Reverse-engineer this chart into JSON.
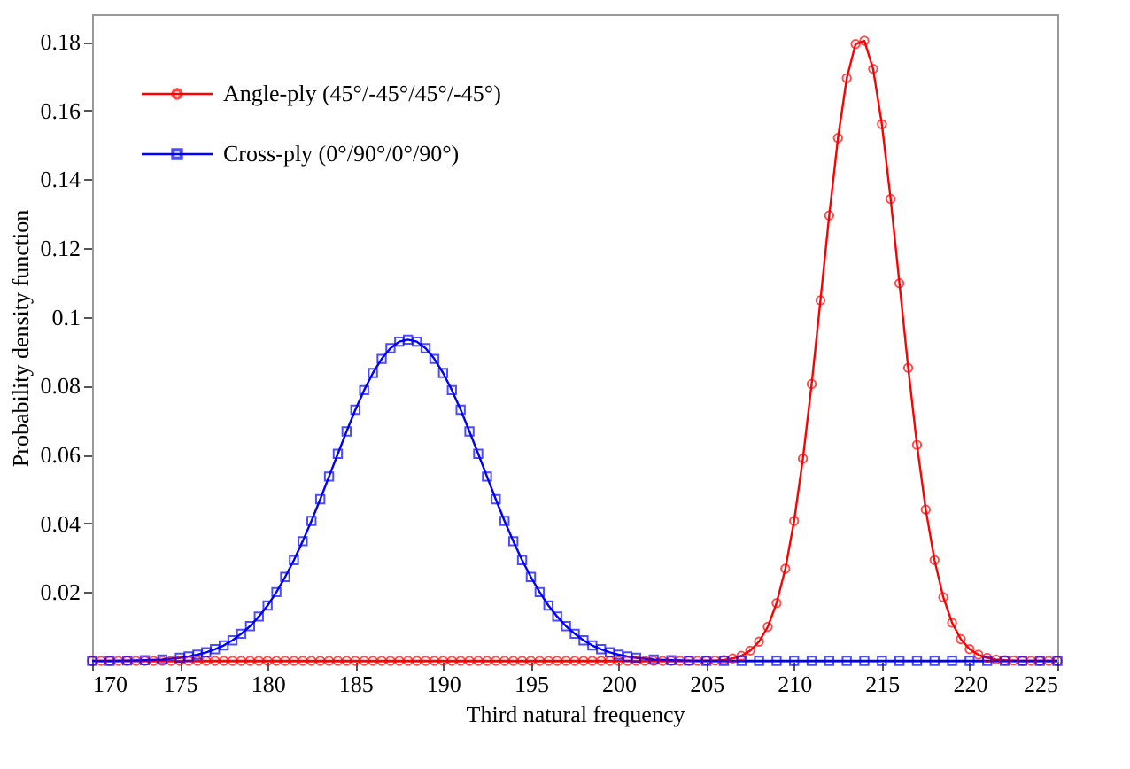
{
  "chart_data": {
    "type": "line",
    "xlabel": "Third natural frequency",
    "ylabel": "Probability density function",
    "xlim": [
      170,
      225
    ],
    "xticks": [
      170,
      175,
      180,
      185,
      190,
      195,
      200,
      205,
      210,
      215,
      220,
      225
    ],
    "ylim": [
      0,
      0.188
    ],
    "yticks": [
      0.02,
      0.04,
      0.06,
      0.08,
      0.1,
      0.12,
      0.14,
      0.16,
      0.18
    ],
    "grid": false,
    "legend": "top left",
    "line_style": "solid",
    "series": [
      {
        "name": "Angle-ply (45°/-45°/45°/-45°)",
        "color": "#ff0000",
        "marker": "circle",
        "x": [
          170,
          170.5,
          171,
          171.5,
          172,
          172.5,
          173,
          173.5,
          174,
          174.5,
          175,
          175.5,
          176,
          176.5,
          177,
          177.5,
          178,
          178.5,
          179,
          179.5,
          180,
          180.5,
          181,
          181.5,
          182,
          182.5,
          183,
          183.5,
          184,
          184.5,
          185,
          185.5,
          186,
          186.5,
          187,
          187.5,
          188,
          188.5,
          189,
          189.5,
          190,
          190.5,
          191,
          191.5,
          192,
          192.5,
          193,
          193.5,
          194,
          194.5,
          195,
          195.5,
          196,
          196.5,
          197,
          197.5,
          198,
          198.5,
          199,
          199.5,
          200,
          200.5,
          201,
          201.5,
          202,
          202.5,
          203,
          203.5,
          204,
          204.5,
          205,
          205.5,
          206,
          206.5,
          207,
          207.5,
          208,
          208.5,
          209,
          209.5,
          210,
          210.5,
          211,
          211.5,
          212,
          212.5,
          213,
          213.5,
          214,
          214.5,
          215,
          215.5,
          216,
          216.5,
          217,
          217.5,
          218,
          218.5,
          219,
          219.5,
          220,
          220.5,
          221,
          221.5,
          222,
          222.5,
          223,
          223.5,
          224,
          224.5,
          225
        ],
        "values": [
          0,
          0,
          0,
          0,
          0,
          0,
          0,
          0,
          0,
          0,
          0,
          0,
          0,
          0,
          0,
          0,
          0,
          0,
          0,
          0,
          0,
          0,
          0,
          0,
          0,
          0,
          0,
          0,
          0,
          0,
          0,
          0,
          0,
          0,
          0,
          0,
          0,
          0,
          0,
          0,
          0,
          0,
          0,
          0,
          0,
          0,
          0,
          0,
          0,
          0,
          0,
          0,
          0,
          0,
          0,
          0,
          0,
          0,
          0,
          0,
          0,
          0,
          0,
          0,
          0,
          0,
          0,
          0,
          0,
          0,
          0.0001,
          0.0001,
          0.0003,
          0.0007,
          0.0015,
          0.003,
          0.0056,
          0.0099,
          0.0168,
          0.0268,
          0.0407,
          0.0588,
          0.0805,
          0.1048,
          0.1295,
          0.152,
          0.1694,
          0.1793,
          0.1803,
          0.1721,
          0.156,
          0.1343,
          0.1098,
          0.0852,
          0.0628,
          0.044,
          0.0293,
          0.0185,
          0.0111,
          0.0063,
          0.0034,
          0.0018,
          0.0009,
          0.0004,
          0.0002,
          0.0001,
          0,
          0,
          0,
          0,
          0
        ]
      },
      {
        "name": "Cross-ply (0°/90°/0°/90°)",
        "color": "#0000ff",
        "marker": "square",
        "x": [
          170,
          171,
          172,
          173,
          174,
          175,
          175.5,
          176,
          176.5,
          177,
          177.5,
          178,
          178.5,
          179,
          179.5,
          180,
          180.5,
          181,
          181.5,
          182,
          182.5,
          183,
          183.5,
          184,
          184.5,
          185,
          185.5,
          186,
          186.5,
          187,
          187.5,
          188,
          188.5,
          189,
          189.5,
          190,
          190.5,
          191,
          191.5,
          192,
          192.5,
          193,
          193.5,
          194,
          194.5,
          195,
          195.5,
          196,
          196.5,
          197,
          197.5,
          198,
          198.5,
          199,
          199.5,
          200,
          200.5,
          201,
          202,
          203,
          204,
          205,
          206,
          207,
          208,
          209,
          210,
          211,
          212,
          213,
          214,
          215,
          216,
          217,
          218,
          219,
          220,
          221,
          222,
          223,
          224,
          225
        ],
        "values": [
          0,
          0,
          0.0001,
          0.0002,
          0.0004,
          0.0009,
          0.0013,
          0.0018,
          0.0025,
          0.0034,
          0.0045,
          0.006,
          0.0079,
          0.0101,
          0.0129,
          0.0161,
          0.02,
          0.0244,
          0.0293,
          0.0348,
          0.0407,
          0.047,
          0.0536,
          0.0602,
          0.0667,
          0.073,
          0.0787,
          0.0837,
          0.0878,
          0.0909,
          0.0928,
          0.0934,
          0.0928,
          0.0909,
          0.0878,
          0.0837,
          0.0787,
          0.073,
          0.0667,
          0.0602,
          0.0536,
          0.047,
          0.0407,
          0.0348,
          0.0293,
          0.0244,
          0.02,
          0.0161,
          0.0129,
          0.0101,
          0.0079,
          0.006,
          0.0045,
          0.0034,
          0.0025,
          0.0018,
          0.0013,
          0.0009,
          0.0004,
          0.0002,
          0.0001,
          0,
          0,
          0,
          0,
          0,
          0,
          0,
          0,
          0,
          0,
          0,
          0,
          0,
          0,
          0,
          0,
          0,
          0,
          0,
          0,
          0
        ]
      }
    ]
  }
}
